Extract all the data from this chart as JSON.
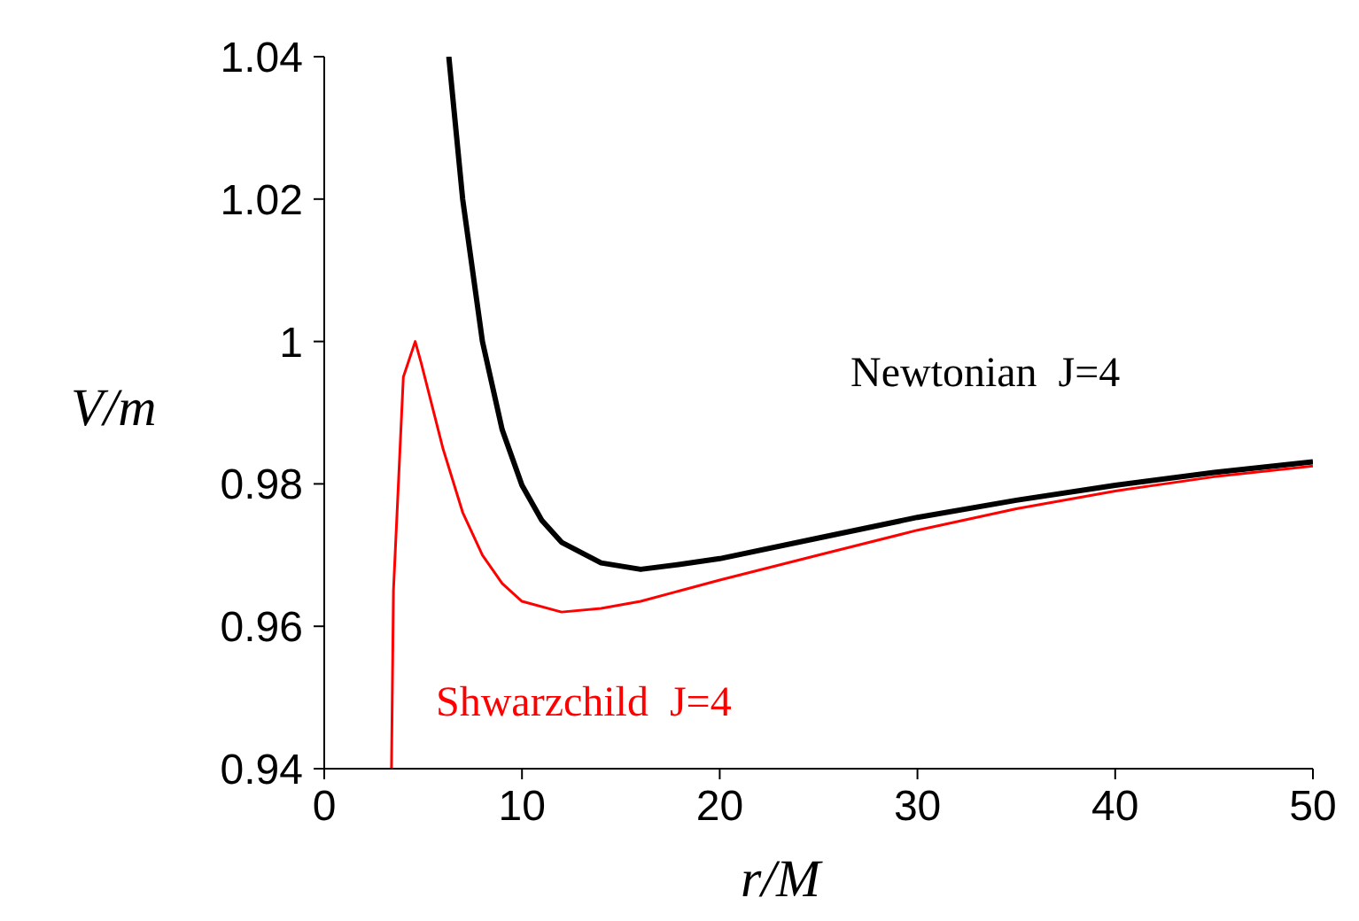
{
  "chart_data": {
    "type": "line",
    "xlabel": "r/M",
    "ylabel": "V/m",
    "xlim": [
      0,
      50
    ],
    "xticks": [
      0,
      10,
      20,
      30,
      40,
      50
    ],
    "ylim": [
      0.94,
      1.04
    ],
    "yticks": [
      0.94,
      0.96,
      0.98,
      {
        "value": 1,
        "label": "1"
      },
      1.02,
      1.04
    ],
    "grid": false,
    "legend": false,
    "marker": "none",
    "line_style": "solid",
    "series": [
      {
        "name": "Newtonian  J=4",
        "color": "#000000",
        "x": [
          6.3,
          7,
          8,
          9,
          10,
          11,
          12,
          14,
          16,
          18,
          20,
          25,
          30,
          35,
          40,
          45,
          50
        ],
        "values": [
          1.04,
          1.02,
          1.0,
          0.9876,
          0.9798,
          0.9749,
          0.9718,
          0.9689,
          0.968,
          0.9687,
          0.9695,
          0.9724,
          0.9753,
          0.9777,
          0.9798,
          0.9816,
          0.9831
        ]
      },
      {
        "name": "Shwarzchild  J=4",
        "color": "#ff0000",
        "x": [
          3.4,
          3.5,
          4.0,
          4.6,
          4.9,
          6,
          7,
          8,
          9,
          10,
          12,
          14,
          16,
          18,
          20,
          25,
          30,
          35,
          40,
          45,
          50
        ],
        "values": [
          0.94,
          0.965,
          0.995,
          1.0,
          0.997,
          0.985,
          0.976,
          0.97,
          0.966,
          0.9635,
          0.962,
          0.9625,
          0.9635,
          0.965,
          0.9665,
          0.97,
          0.9735,
          0.9765,
          0.979,
          0.981,
          0.9825
        ]
      }
    ]
  }
}
